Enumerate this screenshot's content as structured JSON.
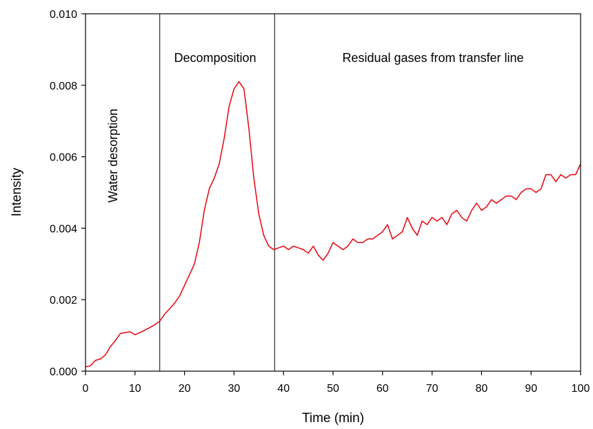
{
  "chart_data": {
    "type": "line",
    "title": "",
    "xlabel": "Time (min)",
    "ylabel": "Intensity",
    "xlim": [
      0,
      100
    ],
    "ylim": [
      0,
      0.01
    ],
    "x_ticks": [
      "0",
      "10",
      "20",
      "30",
      "40",
      "50",
      "60",
      "70",
      "80",
      "90",
      "100"
    ],
    "y_ticks": [
      "0.000",
      "0.002",
      "0.004",
      "0.006",
      "0.008",
      "0.010"
    ],
    "grid": false,
    "legend": "none",
    "series_color": "#e8000b",
    "region_boundaries": [
      15,
      38.2
    ],
    "region_labels": [
      "Water desorption",
      "Decomposition",
      "Residual gases from transfer line"
    ],
    "series": [
      {
        "x": [
          0,
          1,
          2,
          3,
          4,
          5,
          6,
          7,
          8,
          9,
          10,
          11,
          12,
          13,
          14,
          15,
          16,
          17,
          18,
          19,
          20,
          21,
          22,
          23,
          24,
          25,
          26,
          27,
          28,
          29,
          30,
          31,
          32,
          33,
          34,
          35,
          36,
          37,
          38,
          39,
          40,
          41,
          42,
          43,
          44,
          45,
          46,
          47,
          48,
          49,
          50,
          51,
          52,
          53,
          54,
          55,
          56,
          57,
          58,
          59,
          60,
          61,
          62,
          63,
          64,
          65,
          66,
          67,
          68,
          69,
          70,
          71,
          72,
          73,
          74,
          75,
          76,
          77,
          78,
          79,
          80,
          81,
          82,
          83,
          84,
          85,
          86,
          87,
          88,
          89,
          90,
          91,
          92,
          93,
          94,
          95,
          96,
          97,
          98,
          99,
          100
        ],
        "y": [
          0.00012,
          0.00015,
          0.0003,
          0.00034,
          0.00045,
          0.00068,
          0.00085,
          0.00105,
          0.00108,
          0.0011,
          0.00102,
          0.00108,
          0.00115,
          0.00122,
          0.0013,
          0.0014,
          0.0016,
          0.00175,
          0.0019,
          0.0021,
          0.0024,
          0.0027,
          0.003,
          0.0036,
          0.0045,
          0.0051,
          0.0054,
          0.0058,
          0.0065,
          0.0074,
          0.0079,
          0.0081,
          0.0079,
          0.0068,
          0.0054,
          0.0044,
          0.0038,
          0.0035,
          0.0034,
          0.00345,
          0.0035,
          0.0034,
          0.0035,
          0.00345,
          0.0034,
          0.0033,
          0.0035,
          0.00325,
          0.0031,
          0.0033,
          0.0036,
          0.0035,
          0.0034,
          0.0035,
          0.0037,
          0.0036,
          0.0036,
          0.0037,
          0.0037,
          0.0038,
          0.0039,
          0.0041,
          0.0037,
          0.0038,
          0.0039,
          0.0043,
          0.004,
          0.0038,
          0.0042,
          0.0041,
          0.0043,
          0.0042,
          0.0043,
          0.0041,
          0.0044,
          0.0045,
          0.0043,
          0.0042,
          0.0045,
          0.0047,
          0.0045,
          0.0046,
          0.0048,
          0.0047,
          0.0048,
          0.0049,
          0.0049,
          0.0048,
          0.005,
          0.0051,
          0.0051,
          0.005,
          0.0051,
          0.0055,
          0.0055,
          0.0053,
          0.0055,
          0.0054,
          0.0055,
          0.0055,
          0.0058
        ]
      }
    ]
  }
}
